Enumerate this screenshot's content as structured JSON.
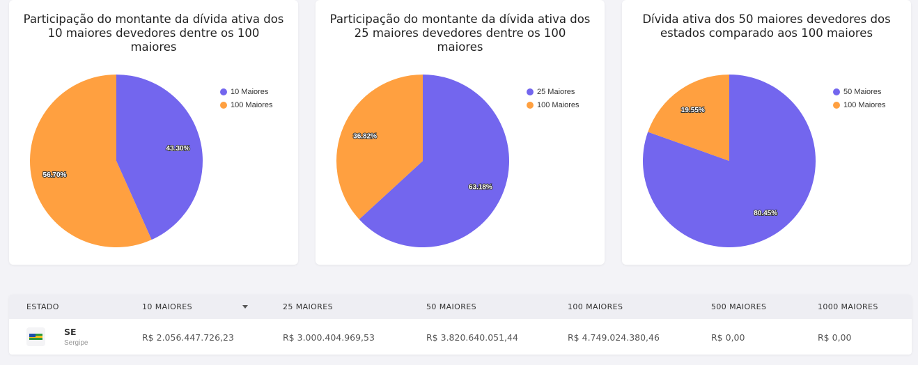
{
  "colors": {
    "series_a": "#7366ee",
    "series_b": "#ffa040"
  },
  "chart_data": [
    {
      "type": "pie",
      "title": "Participação do montante da dívida ativa dos 10 maiores devedores dentre os 100 maiores",
      "series": [
        {
          "name": "10 Maiores",
          "value": 43.3,
          "label": "43.30%"
        },
        {
          "name": "100 Maiores",
          "value": 56.7,
          "label": "56.70%"
        }
      ],
      "legend": "top-right"
    },
    {
      "type": "pie",
      "title": "Participação do montante da dívida ativa dos 25 maiores devedores dentre os 100 maiores",
      "series": [
        {
          "name": "25 Maiores",
          "value": 63.18,
          "label": "63.18%"
        },
        {
          "name": "100 Maiores",
          "value": 36.82,
          "label": "36.82%"
        }
      ],
      "legend": "top-right"
    },
    {
      "type": "pie",
      "title": "Dívida ativa dos 50 maiores devedores dos estados comparado aos 100 maiores",
      "series": [
        {
          "name": "50 Maiores",
          "value": 80.45,
          "label": "80.45%"
        },
        {
          "name": "100 Maiores",
          "value": 19.55,
          "label": "19.55%"
        }
      ],
      "legend": "top-right"
    }
  ],
  "table": {
    "headers": [
      "ESTADO",
      "10 MAIORES",
      "25 MAIORES",
      "50 MAIORES",
      "100 MAIORES",
      "500 MAIORES",
      "1000 MAIORES"
    ],
    "rows": [
      {
        "code": "SE",
        "name": "Sergipe",
        "flag_icon": "sergipe-flag-icon",
        "values": [
          "R$ 2.056.447.726,23",
          "R$ 3.000.404.969,53",
          "R$ 3.820.640.051,44",
          "R$ 4.749.024.380,46",
          "R$ 0,00",
          "R$ 0,00"
        ]
      }
    ]
  }
}
